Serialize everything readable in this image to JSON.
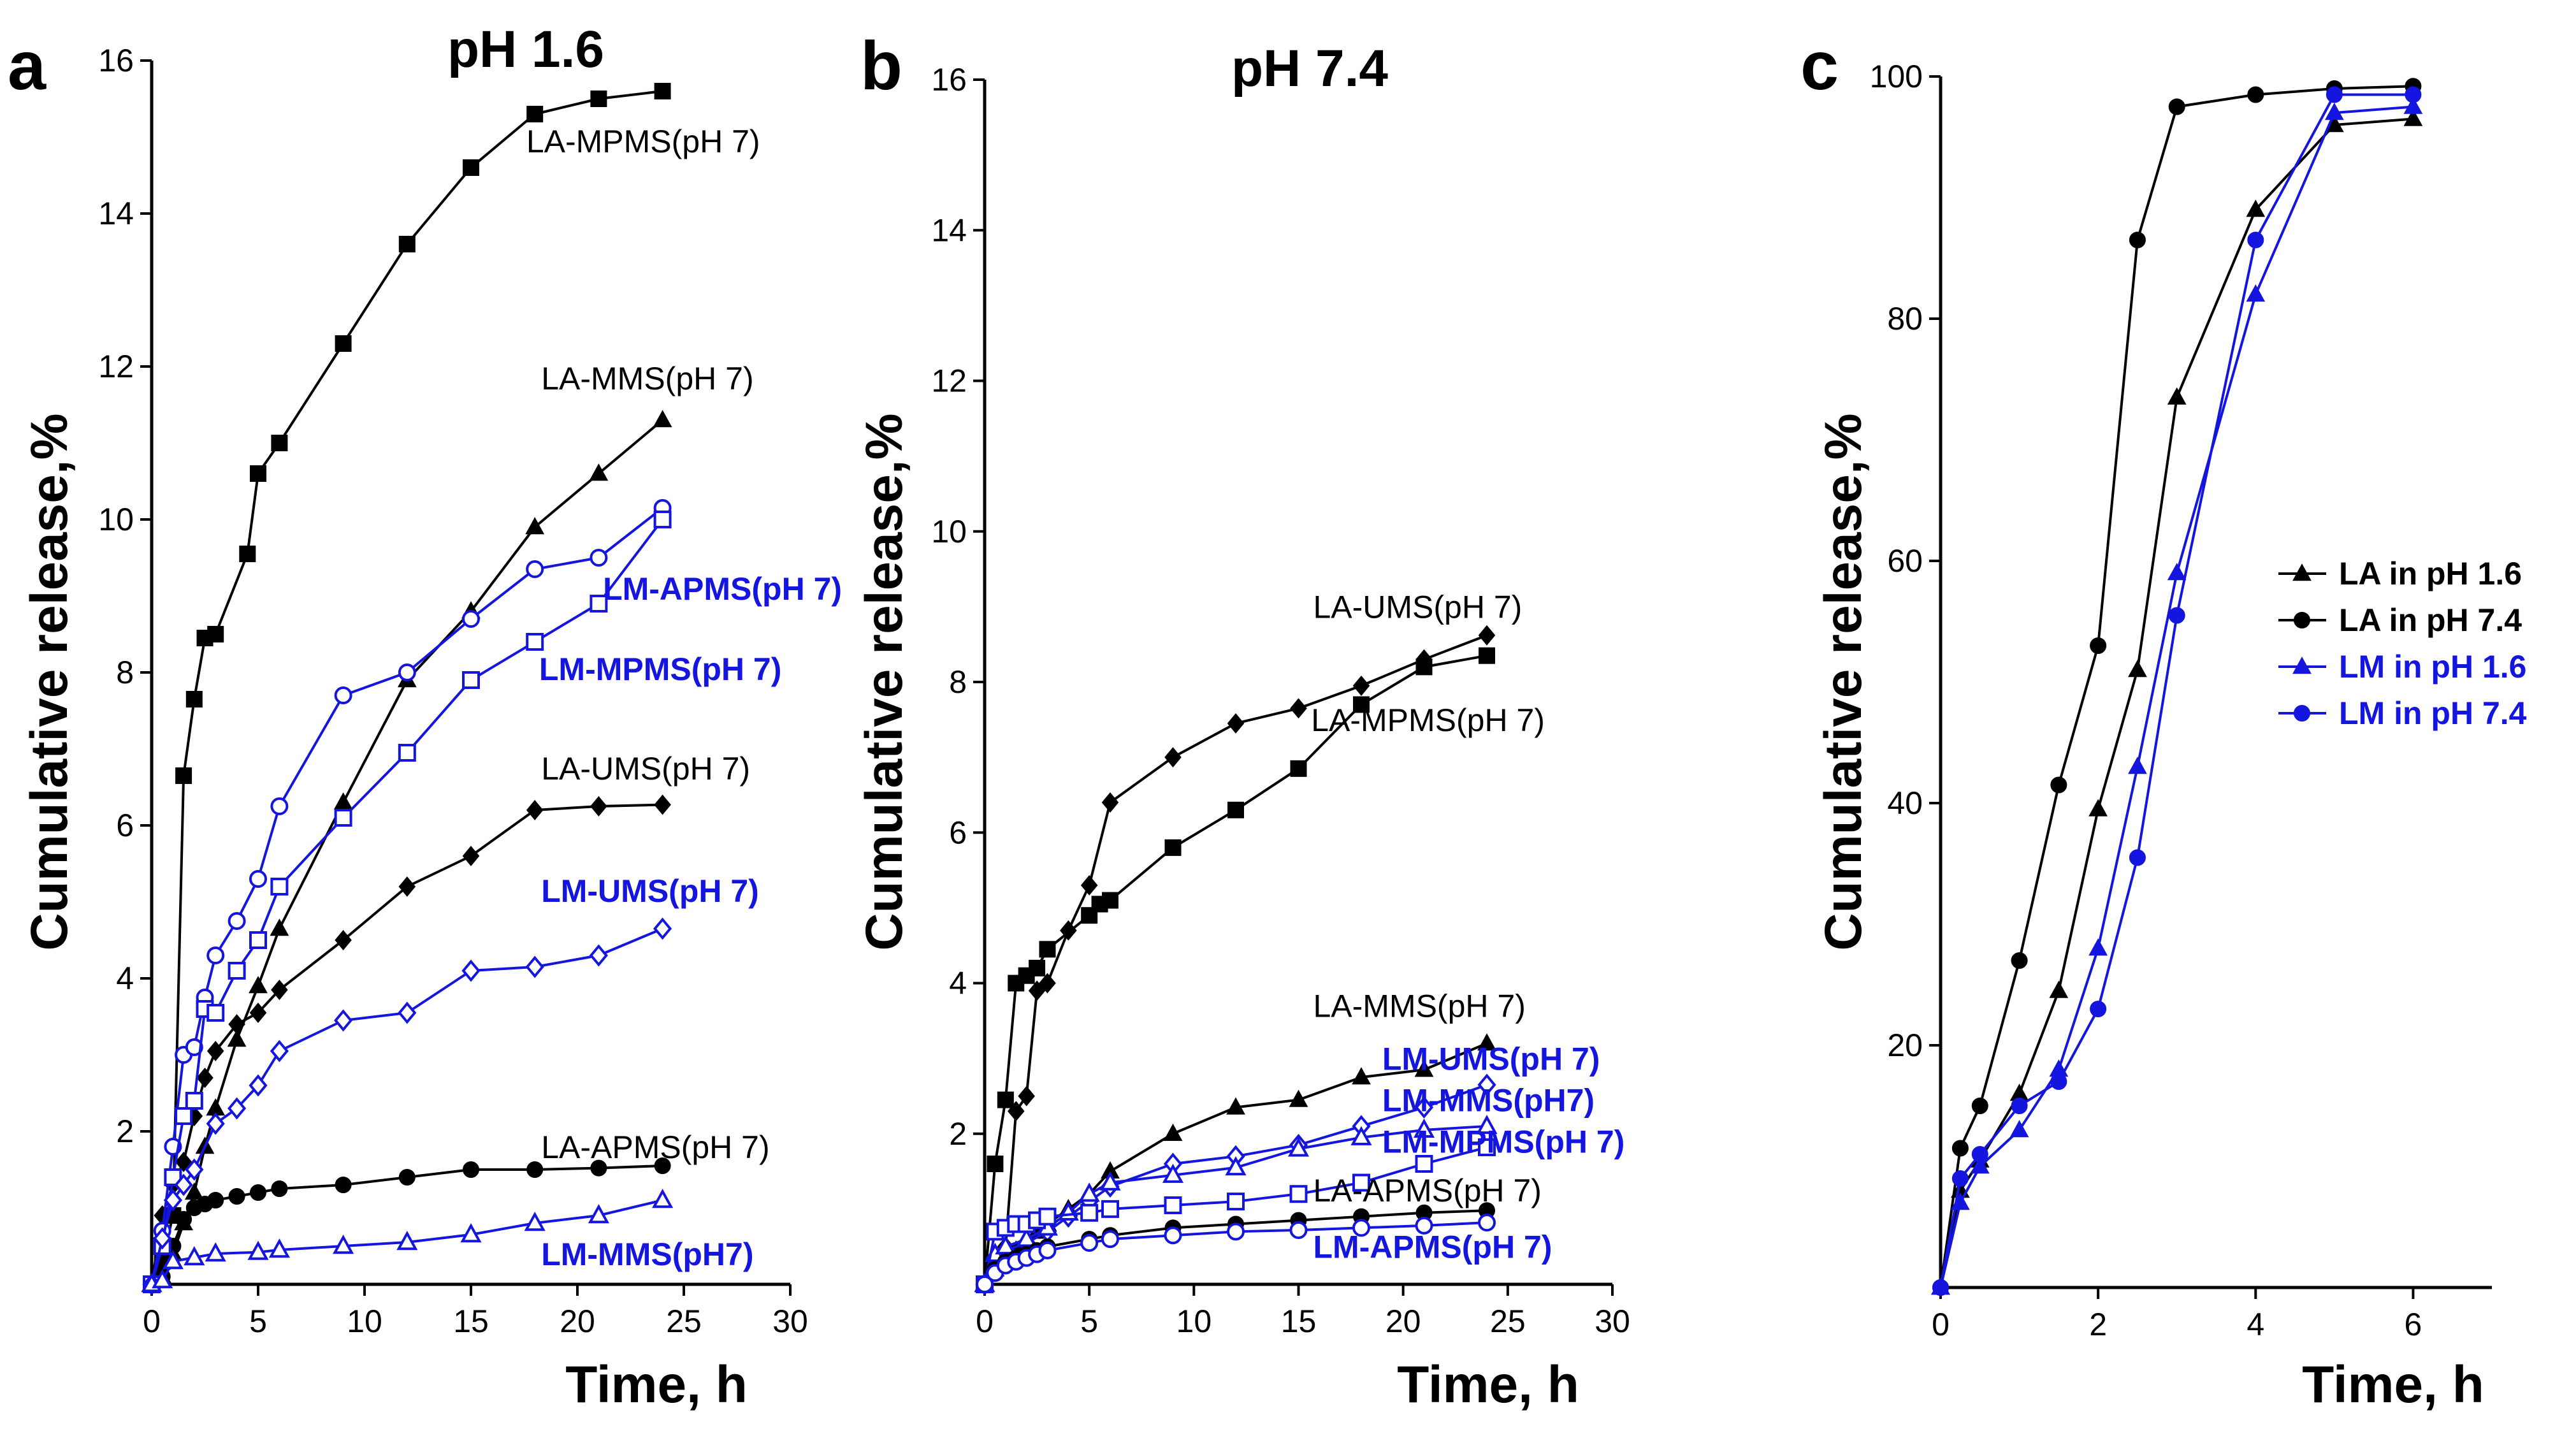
{
  "colors": {
    "black": "#000000",
    "blue": "#1515e0"
  },
  "chart_data": [
    {
      "panel": "a",
      "type": "line",
      "title": "pH 1.6",
      "xlabel": "Time, h",
      "ylabel": "Cumulative release,%",
      "xlim": [
        0,
        30
      ],
      "ylim": [
        0,
        16
      ],
      "xticks": [
        0,
        5,
        10,
        15,
        20,
        25,
        30
      ],
      "yticks": [
        2,
        4,
        6,
        8,
        10,
        12,
        14,
        16
      ],
      "series": [
        {
          "name": "LA-MPMS(pH 7)",
          "color": "black",
          "marker": "square",
          "fill": true,
          "x": [
            0,
            0.5,
            1,
            1.5,
            2,
            2.5,
            3,
            4.5,
            5,
            6,
            9,
            12,
            15,
            18,
            21,
            24
          ],
          "y": [
            0,
            0.3,
            0.9,
            6.65,
            7.65,
            8.45,
            8.5,
            9.55,
            10.6,
            11,
            12.3,
            13.6,
            14.6,
            15.3,
            15.5,
            15.6
          ]
        },
        {
          "name": "LA-MMS(pH 7)",
          "color": "black",
          "marker": "triangle",
          "fill": true,
          "x": [
            0,
            0.5,
            1,
            1.5,
            2,
            2.5,
            3,
            4,
            5,
            6,
            9,
            12,
            15,
            18,
            21,
            24
          ],
          "y": [
            0,
            0.1,
            0.4,
            0.8,
            1.2,
            1.8,
            2.3,
            3.2,
            3.9,
            4.65,
            6.3,
            7.9,
            8.8,
            9.9,
            10.6,
            11.3
          ]
        },
        {
          "name": "LA-UMS(pH 7)",
          "color": "black",
          "marker": "diamond",
          "fill": true,
          "x": [
            0,
            0.5,
            1,
            1.5,
            2,
            2.5,
            3,
            4,
            5,
            6,
            9,
            12,
            15,
            18,
            21,
            24
          ],
          "y": [
            0,
            0.9,
            1.3,
            1.6,
            2.2,
            2.7,
            3.05,
            3.4,
            3.55,
            3.85,
            4.5,
            5.2,
            5.6,
            6.2,
            6.25,
            6.27
          ]
        },
        {
          "name": "LA-APMS(pH 7)",
          "color": "black",
          "marker": "circle",
          "fill": true,
          "x": [
            0,
            0.5,
            1,
            1.5,
            2,
            2.5,
            3,
            4,
            5,
            6,
            9,
            12,
            15,
            18,
            21,
            24
          ],
          "y": [
            0,
            0.1,
            0.5,
            0.85,
            1.0,
            1.05,
            1.1,
            1.15,
            1.2,
            1.25,
            1.3,
            1.4,
            1.5,
            1.5,
            1.52,
            1.55
          ]
        },
        {
          "name": "LM-APMS(pH 7)",
          "color": "blue",
          "marker": "circle",
          "fill": false,
          "x": [
            0,
            0.5,
            1,
            1.5,
            2,
            2.5,
            3,
            4,
            5,
            6,
            9,
            12,
            15,
            18,
            21,
            24
          ],
          "y": [
            0,
            0.7,
            1.8,
            3.0,
            3.1,
            3.75,
            4.3,
            4.75,
            5.3,
            6.25,
            7.7,
            8.0,
            8.7,
            9.35,
            9.5,
            10.15
          ]
        },
        {
          "name": "LM-MPMS(pH 7)",
          "color": "blue",
          "marker": "square",
          "fill": false,
          "x": [
            0,
            0.5,
            1,
            1.5,
            2,
            2.5,
            3,
            4,
            5,
            6,
            9,
            12,
            15,
            18,
            21,
            24
          ],
          "y": [
            0,
            0.5,
            1.4,
            2.2,
            2.4,
            3.6,
            3.55,
            4.1,
            4.5,
            5.2,
            6.1,
            6.95,
            7.9,
            8.4,
            8.9,
            10.0
          ]
        },
        {
          "name": "LM-UMS(pH 7)",
          "color": "blue",
          "marker": "diamond",
          "fill": false,
          "x": [
            0,
            0.5,
            1,
            1.5,
            2,
            3,
            4,
            5,
            6,
            9,
            12,
            15,
            18,
            21,
            24
          ],
          "y": [
            0,
            0.6,
            1.1,
            1.3,
            1.5,
            2.1,
            2.3,
            2.6,
            3.05,
            3.45,
            3.55,
            4.1,
            4.15,
            4.3,
            4.65
          ]
        },
        {
          "name": "LM-MMS(pH7)",
          "color": "blue",
          "marker": "triangle",
          "fill": false,
          "x": [
            0,
            0.5,
            1,
            2,
            3,
            5,
            6,
            9,
            12,
            15,
            18,
            21,
            24
          ],
          "y": [
            0,
            0.05,
            0.3,
            0.35,
            0.4,
            0.42,
            0.45,
            0.5,
            0.55,
            0.65,
            0.8,
            0.9,
            1.1
          ]
        }
      ],
      "annotations": [
        {
          "text": "LA-MPMS(pH 7)",
          "color": "black",
          "bold": false,
          "x": 17.6,
          "y": 14.8
        },
        {
          "text": "LA-MMS(pH 7)",
          "color": "black",
          "bold": false,
          "x": 18.3,
          "y": 11.7
        },
        {
          "text": "LM-APMS(pH 7)",
          "color": "blue",
          "bold": true,
          "x": 21.2,
          "y": 8.95
        },
        {
          "text": "LM-MPMS(pH 7)",
          "color": "blue",
          "bold": true,
          "x": 18.2,
          "y": 7.9
        },
        {
          "text": "LA-UMS(pH 7)",
          "color": "black",
          "bold": false,
          "x": 18.3,
          "y": 6.6
        },
        {
          "text": "LM-UMS(pH 7)",
          "color": "blue",
          "bold": true,
          "x": 18.3,
          "y": 5.0
        },
        {
          "text": "LA-APMS(pH 7)",
          "color": "black",
          "bold": false,
          "x": 18.3,
          "y": 1.65
        },
        {
          "text": "LM-MMS(pH7)",
          "color": "blue",
          "bold": true,
          "x": 18.3,
          "y": 0.25
        }
      ]
    },
    {
      "panel": "b",
      "type": "line",
      "title": "pH 7.4",
      "xlabel": "Time, h",
      "ylabel": "Cumulative release,%",
      "xlim": [
        0,
        30
      ],
      "ylim": [
        0,
        16
      ],
      "xticks": [
        0,
        5,
        10,
        15,
        20,
        25,
        30
      ],
      "yticks": [
        2,
        4,
        6,
        8,
        10,
        12,
        14,
        16
      ],
      "series": [
        {
          "name": "LA-UMS(pH 7)",
          "color": "black",
          "marker": "diamond",
          "fill": true,
          "x": [
            0,
            0.5,
            1,
            1.5,
            2,
            2.5,
            3,
            4,
            5,
            6,
            9,
            12,
            15,
            18,
            21,
            24
          ],
          "y": [
            0,
            0.3,
            0.5,
            2.3,
            2.5,
            3.9,
            4.0,
            4.7,
            5.3,
            6.4,
            7.0,
            7.45,
            7.65,
            7.95,
            8.3,
            8.62
          ]
        },
        {
          "name": "LA-MPMS(pH 7)",
          "color": "black",
          "marker": "square",
          "fill": true,
          "x": [
            0,
            0.5,
            1,
            1.5,
            2,
            2.5,
            3,
            5,
            5.5,
            6,
            9,
            12,
            15,
            18,
            21,
            24
          ],
          "y": [
            0,
            1.6,
            2.45,
            4.0,
            4.1,
            4.2,
            4.45,
            4.9,
            5.05,
            5.1,
            5.8,
            6.3,
            6.85,
            7.7,
            8.2,
            8.35
          ]
        },
        {
          "name": "LA-MMS(pH 7)",
          "color": "black",
          "marker": "triangle",
          "fill": true,
          "x": [
            0,
            0.5,
            1,
            1.5,
            2,
            2.5,
            3,
            4,
            5,
            6,
            9,
            12,
            15,
            18,
            21,
            24
          ],
          "y": [
            0,
            0.2,
            0.3,
            0.45,
            0.55,
            0.7,
            0.8,
            1.0,
            1.2,
            1.5,
            2.0,
            2.35,
            2.45,
            2.75,
            2.85,
            3.2
          ]
        },
        {
          "name": "LM-UMS(pH 7)",
          "color": "blue",
          "marker": "diamond",
          "fill": false,
          "x": [
            0,
            0.5,
            1,
            2,
            3,
            4,
            5,
            6,
            9,
            12,
            15,
            18,
            21,
            24
          ],
          "y": [
            0,
            0.35,
            0.45,
            0.55,
            0.7,
            0.9,
            1.1,
            1.3,
            1.6,
            1.7,
            1.85,
            2.1,
            2.35,
            2.65
          ]
        },
        {
          "name": "LM-MMS(pH7)",
          "color": "blue",
          "marker": "triangle",
          "fill": false,
          "x": [
            0,
            0.5,
            1,
            2,
            3,
            4,
            5,
            6,
            9,
            12,
            15,
            18,
            21,
            24
          ],
          "y": [
            0,
            0.4,
            0.5,
            0.6,
            0.75,
            0.95,
            1.2,
            1.35,
            1.45,
            1.55,
            1.8,
            1.95,
            2.05,
            2.1
          ]
        },
        {
          "name": "LM-MPMS(pH 7)",
          "color": "blue",
          "marker": "square",
          "fill": false,
          "x": [
            0,
            0.5,
            1,
            1.5,
            2,
            2.5,
            3,
            5,
            6,
            9,
            12,
            15,
            18,
            21,
            24
          ],
          "y": [
            0,
            0.7,
            0.75,
            0.8,
            0.8,
            0.85,
            0.9,
            0.95,
            1.0,
            1.05,
            1.1,
            1.2,
            1.35,
            1.6,
            1.82
          ]
        },
        {
          "name": "LA-APMS(pH 7)",
          "color": "black",
          "marker": "circle",
          "fill": true,
          "x": [
            0,
            0.5,
            1,
            1.5,
            2,
            2.5,
            3,
            5,
            6,
            9,
            12,
            15,
            18,
            21,
            24
          ],
          "y": [
            0,
            0.2,
            0.3,
            0.35,
            0.4,
            0.45,
            0.5,
            0.6,
            0.65,
            0.75,
            0.8,
            0.85,
            0.9,
            0.95,
            0.98
          ]
        },
        {
          "name": "LM-APMS(pH 7)",
          "color": "blue",
          "marker": "circle",
          "fill": false,
          "x": [
            0,
            0.5,
            1,
            1.5,
            2,
            2.5,
            3,
            5,
            6,
            9,
            12,
            15,
            18,
            21,
            24
          ],
          "y": [
            0,
            0.15,
            0.25,
            0.3,
            0.35,
            0.4,
            0.45,
            0.55,
            0.6,
            0.65,
            0.7,
            0.72,
            0.75,
            0.78,
            0.82
          ]
        }
      ],
      "annotations": [
        {
          "text": "LA-UMS(pH 7)",
          "color": "black",
          "bold": false,
          "x": 15.7,
          "y": 8.85
        },
        {
          "text": "LA-MPMS(pH 7)",
          "color": "black",
          "bold": false,
          "x": 15.6,
          "y": 7.35
        },
        {
          "text": "LA-MMS(pH 7)",
          "color": "black",
          "bold": false,
          "x": 15.7,
          "y": 3.55
        },
        {
          "text": "LM-UMS(pH 7)",
          "color": "blue",
          "bold": true,
          "x": 19.0,
          "y": 2.85
        },
        {
          "text": "LM-MMS(pH7)",
          "color": "blue",
          "bold": true,
          "x": 19.0,
          "y": 2.3
        },
        {
          "text": "LM-MPMS(pH 7)",
          "color": "blue",
          "bold": true,
          "x": 19.0,
          "y": 1.75
        },
        {
          "text": "LA-APMS(pH 7)",
          "color": "black",
          "bold": false,
          "x": 15.7,
          "y": 1.1
        },
        {
          "text": "LM-APMS(pH 7)",
          "color": "blue",
          "bold": true,
          "x": 15.7,
          "y": 0.35
        }
      ]
    },
    {
      "panel": "c",
      "type": "line",
      "title": "",
      "xlabel": "Time, h",
      "ylabel": "Cumulative release,%",
      "xlim": [
        0,
        7
      ],
      "ylim": [
        0,
        100
      ],
      "xticks": [
        0,
        2,
        4,
        6
      ],
      "yticks": [
        20,
        40,
        60,
        80,
        100
      ],
      "legend": "right",
      "series": [
        {
          "name": "LA in pH 1.6",
          "color": "black",
          "marker": "triangle",
          "fill": true,
          "x": [
            0,
            0.25,
            0.5,
            1,
            1.5,
            2,
            2.5,
            3,
            4,
            5,
            6
          ],
          "y": [
            0,
            8,
            10.5,
            16,
            24.5,
            39.5,
            51,
            73.5,
            89,
            96,
            96.5
          ]
        },
        {
          "name": "LA in pH 7.4",
          "color": "black",
          "marker": "circle",
          "fill": true,
          "x": [
            0,
            0.25,
            0.5,
            1,
            1.5,
            2,
            2.5,
            3,
            4,
            5,
            6
          ],
          "y": [
            0,
            11.5,
            15,
            27,
            41.5,
            53,
            86.5,
            97.5,
            98.5,
            99,
            99.2
          ]
        },
        {
          "name": "LM in pH 1.6",
          "color": "blue",
          "marker": "triangle",
          "fill": true,
          "x": [
            0,
            0.25,
            0.5,
            1,
            1.5,
            2,
            2.5,
            3,
            4,
            5,
            6
          ],
          "y": [
            0,
            7,
            10,
            13,
            18,
            28,
            43,
            59,
            82,
            97,
            97.5
          ]
        },
        {
          "name": "LM in pH 7.4",
          "color": "blue",
          "marker": "circle",
          "fill": true,
          "x": [
            0,
            0.25,
            0.5,
            1,
            1.5,
            2,
            2.5,
            3,
            4,
            5,
            6
          ],
          "y": [
            0,
            9,
            11,
            15,
            17,
            23,
            35.5,
            55.5,
            86.5,
            98.5,
            98.5
          ]
        }
      ],
      "annotations": []
    }
  ]
}
